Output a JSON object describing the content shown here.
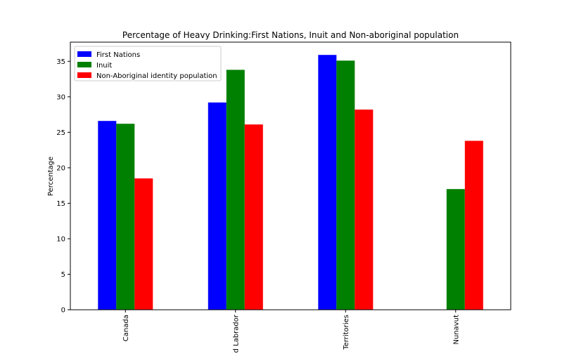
{
  "chart_data": {
    "type": "bar",
    "title": "Percentage of Heavy Drinking:First Nations, Inuit and Non-aboriginal population",
    "xlabel": "",
    "ylabel": "Percentage",
    "categories": [
      "Canada",
      "d Labrador",
      "Territories",
      "Nunavut"
    ],
    "series": [
      {
        "name": "First Nations",
        "color": "#0000ff",
        "values": [
          26.6,
          29.2,
          35.9,
          null
        ]
      },
      {
        "name": "Inuit",
        "color": "#008000",
        "values": [
          26.2,
          33.8,
          35.1,
          17.0
        ]
      },
      {
        "name": "Non-Aboriginal identity population",
        "color": "#ff0000",
        "values": [
          18.5,
          26.1,
          28.2,
          23.8
        ]
      }
    ],
    "ylim": [
      0,
      37.7
    ],
    "yticks": [
      0,
      5,
      10,
      15,
      20,
      25,
      30,
      35
    ],
    "grid": false,
    "legend_position": "top-left"
  }
}
